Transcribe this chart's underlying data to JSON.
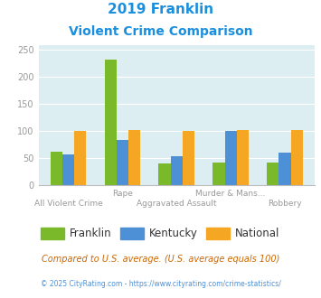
{
  "title_line1": "2019 Franklin",
  "title_line2": "Violent Crime Comparison",
  "categories": [
    "All Violent Crime",
    "Rape",
    "Aggravated Assault",
    "Murder & Mans...",
    "Robbery"
  ],
  "x_top_labels": [
    "",
    "Rape",
    "",
    "Murder & Mans...",
    ""
  ],
  "x_bottom_labels": [
    "All Violent Crime",
    "",
    "Aggravated Assault",
    "",
    "Robbery"
  ],
  "franklin": [
    62,
    233,
    40,
    42,
    42
  ],
  "kentucky": [
    57,
    83,
    53,
    100,
    60
  ],
  "national": [
    100,
    101,
    100,
    101,
    101
  ],
  "franklin_color": "#7aba2a",
  "kentucky_color": "#4d90d5",
  "national_color": "#f5a623",
  "bg_color": "#ddeef3",
  "title_color": "#1a8fdd",
  "xlabel_color": "#999999",
  "ylabel_color": "#999999",
  "grid_color": "#ffffff",
  "ylim": [
    0,
    260
  ],
  "yticks": [
    0,
    50,
    100,
    150,
    200,
    250
  ],
  "legend_labels": [
    "Franklin",
    "Kentucky",
    "National"
  ],
  "footnote1": "Compared to U.S. average. (U.S. average equals 100)",
  "footnote2": "© 2025 CityRating.com - https://www.cityrating.com/crime-statistics/",
  "footnote1_color": "#cc6600",
  "footnote2_color": "#4d90d5"
}
